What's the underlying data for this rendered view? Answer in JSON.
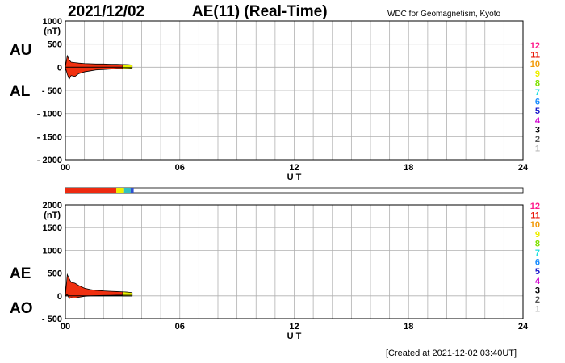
{
  "header": {
    "date": "2021/12/02",
    "title": "AE(11) (Real-Time)",
    "source": "WDC for Geomagnetism, Kyoto"
  },
  "footer": {
    "created": "[Created at 2021-12-02 03:40UT]"
  },
  "side_labels": {
    "au": "AU",
    "al": "AL",
    "ae": "AE",
    "ao": "AO"
  },
  "legend": {
    "labels": [
      "12",
      "11",
      "10",
      "9",
      "8",
      "7",
      "6",
      "5",
      "4",
      "3",
      "2",
      "1"
    ],
    "colors": [
      "#ff1a8c",
      "#e8180a",
      "#f29a0a",
      "#eeee00",
      "#7ee000",
      "#20e0e0",
      "#1a8cff",
      "#1a1acc",
      "#d000d0",
      "#000000",
      "#555555",
      "#bbbbbb"
    ]
  },
  "station_bar": {
    "segments": [
      {
        "from": 0,
        "to": 2.67,
        "color": "#ee2a10"
      },
      {
        "from": 2.67,
        "to": 3.08,
        "color": "#f0f000"
      },
      {
        "from": 3.08,
        "to": 3.42,
        "color": "#30c0c0"
      },
      {
        "from": 3.42,
        "to": 3.58,
        "color": "#3050d0"
      }
    ]
  },
  "chart_data": [
    {
      "type": "area",
      "name": "AU/AL",
      "xlabel": "U T",
      "ylabel": "(nT)",
      "xlim": [
        0,
        24
      ],
      "ylim": [
        -2000,
        1000
      ],
      "xticks": [
        "00",
        "06",
        "12",
        "18",
        "24"
      ],
      "yticks": [
        {
          "v": 1000,
          "t": "1000"
        },
        {
          "v": 500,
          "t": "500"
        },
        {
          "v": 0,
          "t": "0"
        },
        {
          "v": -500,
          "t": "- 500"
        },
        {
          "v": -1000,
          "t": "- 1000"
        },
        {
          "v": -1500,
          "t": "- 1500"
        },
        {
          "v": -2000,
          "t": "- 2000"
        }
      ],
      "series": [
        {
          "x": [
            0,
            0.1,
            0.2,
            0.3,
            0.5,
            0.7,
            1.0,
            1.3,
            1.6,
            2.0,
            2.4,
            2.7,
            3.0,
            3.3,
            3.5
          ],
          "values": [
            0,
            250,
            160,
            110,
            100,
            90,
            80,
            75,
            70,
            70,
            65,
            65,
            60,
            55,
            50
          ]
        },
        {
          "x": [
            0,
            0.1,
            0.2,
            0.3,
            0.5,
            0.7,
            1.0,
            1.3,
            1.6,
            2.0,
            2.4,
            2.7,
            3.0,
            3.3,
            3.5
          ],
          "values": [
            0,
            -150,
            -260,
            -180,
            -200,
            -140,
            -100,
            -80,
            -60,
            -50,
            -40,
            -30,
            -30,
            -25,
            -20
          ]
        }
      ]
    },
    {
      "type": "area",
      "name": "AE/AO",
      "xlabel": "U T",
      "ylabel": "(nT)",
      "xlim": [
        0,
        24
      ],
      "ylim": [
        -500,
        2000
      ],
      "xticks": [
        "00",
        "06",
        "12",
        "18",
        "24"
      ],
      "yticks": [
        {
          "v": 2000,
          "t": "2000"
        },
        {
          "v": 1500,
          "t": "1500"
        },
        {
          "v": 1000,
          "t": "1000"
        },
        {
          "v": 500,
          "t": "500"
        },
        {
          "v": 0,
          "t": "0"
        },
        {
          "v": -500,
          "t": "- 500"
        }
      ],
      "series": [
        {
          "x": [
            0,
            0.1,
            0.2,
            0.3,
            0.5,
            0.7,
            1.0,
            1.3,
            1.6,
            2.0,
            2.4,
            2.7,
            3.0,
            3.3,
            3.5
          ],
          "values": [
            0,
            470,
            380,
            300,
            280,
            230,
            170,
            140,
            120,
            110,
            100,
            95,
            90,
            80,
            70
          ]
        },
        {
          "x": [
            0,
            0.1,
            0.2,
            0.3,
            0.5,
            0.7,
            1.0,
            1.3,
            1.6,
            2.0,
            2.4,
            2.7,
            3.0,
            3.3,
            3.5
          ],
          "values": [
            0,
            40,
            -60,
            -40,
            -50,
            -30,
            -10,
            0,
            5,
            10,
            12,
            15,
            15,
            15,
            15
          ]
        }
      ]
    }
  ]
}
